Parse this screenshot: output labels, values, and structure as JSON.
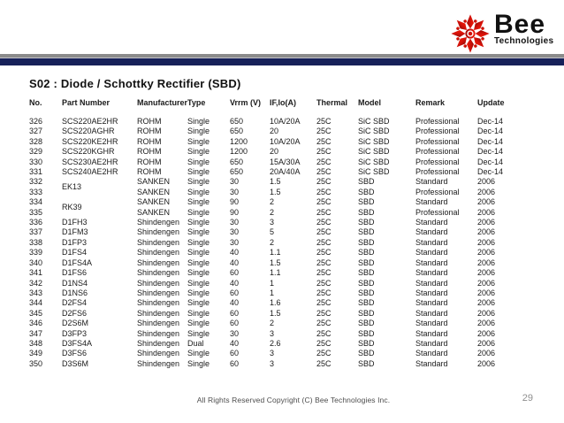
{
  "logo": {
    "brand": "Bee",
    "subtitle": "Technologies",
    "icon": "bee-starburst-icon",
    "brand_red": "#d21109"
  },
  "colors": {
    "bar_gray": "#8b8b8b",
    "bar_navy": "#172159",
    "text": "#1a1a1a"
  },
  "title": "S02 : Diode / Schottky Rectifier (SBD)",
  "table": {
    "headers": [
      "No.",
      "Part Number",
      "Manufacturer",
      "Type",
      "Vrrm (V)",
      "IF,Io(A)",
      "Thermal",
      "Model",
      "Remark",
      "Update"
    ],
    "column_keys": [
      "no",
      "part",
      "mfr",
      "type",
      "vrrm",
      "if_io",
      "thermal",
      "model",
      "remark",
      "update"
    ],
    "rows": [
      {
        "no": "326",
        "part": "SCS220AE2HR",
        "mfr": "ROHM",
        "type": "Single",
        "vrrm": "650",
        "if_io": "10A/20A",
        "thermal": "25C",
        "model": "SiC SBD",
        "remark": "Professional",
        "update": "Dec-14"
      },
      {
        "no": "327",
        "part": "SCS220AGHR",
        "mfr": "ROHM",
        "type": "Single",
        "vrrm": "650",
        "if_io": "20",
        "thermal": "25C",
        "model": "SiC SBD",
        "remark": "Professional",
        "update": "Dec-14"
      },
      {
        "no": "328",
        "part": "SCS220KE2HR",
        "mfr": "ROHM",
        "type": "Single",
        "vrrm": "1200",
        "if_io": "10A/20A",
        "thermal": "25C",
        "model": "SiC SBD",
        "remark": "Professional",
        "update": "Dec-14"
      },
      {
        "no": "329",
        "part": "SCS220KGHR",
        "mfr": "ROHM",
        "type": "Single",
        "vrrm": "1200",
        "if_io": "20",
        "thermal": "25C",
        "model": "SiC SBD",
        "remark": "Professional",
        "update": "Dec-14"
      },
      {
        "no": "330",
        "part": "SCS230AE2HR",
        "mfr": "ROHM",
        "type": "Single",
        "vrrm": "650",
        "if_io": "15A/30A",
        "thermal": "25C",
        "model": "SiC SBD",
        "remark": "Professional",
        "update": "Dec-14"
      },
      {
        "no": "331",
        "part": "SCS240AE2HR",
        "mfr": "ROHM",
        "type": "Single",
        "vrrm": "650",
        "if_io": "20A/40A",
        "thermal": "25C",
        "model": "SiC SBD",
        "remark": "Professional",
        "update": "Dec-14"
      },
      {
        "no": "332",
        "part": "EK13",
        "part_rowspan": 2,
        "mfr": "SANKEN",
        "type": "Single",
        "vrrm": "30",
        "if_io": "1.5",
        "thermal": "25C",
        "model": "SBD",
        "remark": "Standard",
        "update": "2006"
      },
      {
        "no": "333",
        "part": null,
        "mfr": "SANKEN",
        "type": "Single",
        "vrrm": "30",
        "if_io": "1.5",
        "thermal": "25C",
        "model": "SBD",
        "remark": "Professional",
        "update": "2006"
      },
      {
        "no": "334",
        "part": "RK39",
        "part_rowspan": 2,
        "mfr": "SANKEN",
        "type": "Single",
        "vrrm": "90",
        "if_io": "2",
        "thermal": "25C",
        "model": "SBD",
        "remark": "Standard",
        "update": "2006"
      },
      {
        "no": "335",
        "part": null,
        "mfr": "SANKEN",
        "type": "Single",
        "vrrm": "90",
        "if_io": "2",
        "thermal": "25C",
        "model": "SBD",
        "remark": "Professional",
        "update": "2006"
      },
      {
        "no": "336",
        "part": "D1FH3",
        "mfr": "Shindengen",
        "type": "Single",
        "vrrm": "30",
        "if_io": "3",
        "thermal": "25C",
        "model": "SBD",
        "remark": "Standard",
        "update": "2006"
      },
      {
        "no": "337",
        "part": "D1FM3",
        "mfr": "Shindengen",
        "type": "Single",
        "vrrm": "30",
        "if_io": "5",
        "thermal": "25C",
        "model": "SBD",
        "remark": "Standard",
        "update": "2006"
      },
      {
        "no": "338",
        "part": "D1FP3",
        "mfr": "Shindengen",
        "type": "Single",
        "vrrm": "30",
        "if_io": "2",
        "thermal": "25C",
        "model": "SBD",
        "remark": "Standard",
        "update": "2006"
      },
      {
        "no": "339",
        "part": "D1FS4",
        "mfr": "Shindengen",
        "type": "Single",
        "vrrm": "40",
        "if_io": "1.1",
        "thermal": "25C",
        "model": "SBD",
        "remark": "Standard",
        "update": "2006"
      },
      {
        "no": "340",
        "part": "D1FS4A",
        "mfr": "Shindengen",
        "type": "Single",
        "vrrm": "40",
        "if_io": "1.5",
        "thermal": "25C",
        "model": "SBD",
        "remark": "Standard",
        "update": "2006"
      },
      {
        "no": "341",
        "part": "D1FS6",
        "mfr": "Shindengen",
        "type": "Single",
        "vrrm": "60",
        "if_io": "1.1",
        "thermal": "25C",
        "model": "SBD",
        "remark": "Standard",
        "update": "2006"
      },
      {
        "no": "342",
        "part": "D1NS4",
        "mfr": "Shindengen",
        "type": "Single",
        "vrrm": "40",
        "if_io": "1",
        "thermal": "25C",
        "model": "SBD",
        "remark": "Standard",
        "update": "2006"
      },
      {
        "no": "343",
        "part": "D1NS6",
        "mfr": "Shindengen",
        "type": "Single",
        "vrrm": "60",
        "if_io": "1",
        "thermal": "25C",
        "model": "SBD",
        "remark": "Standard",
        "update": "2006"
      },
      {
        "no": "344",
        "part": "D2FS4",
        "mfr": "Shindengen",
        "type": "Single",
        "vrrm": "40",
        "if_io": "1.6",
        "thermal": "25C",
        "model": "SBD",
        "remark": "Standard",
        "update": "2006"
      },
      {
        "no": "345",
        "part": "D2FS6",
        "mfr": "Shindengen",
        "type": "Single",
        "vrrm": "60",
        "if_io": "1.5",
        "thermal": "25C",
        "model": "SBD",
        "remark": "Standard",
        "update": "2006"
      },
      {
        "no": "346",
        "part": "D2S6M",
        "mfr": "Shindengen",
        "type": "Single",
        "vrrm": "60",
        "if_io": "2",
        "thermal": "25C",
        "model": "SBD",
        "remark": "Standard",
        "update": "2006"
      },
      {
        "no": "347",
        "part": "D3FP3",
        "mfr": "Shindengen",
        "type": "Single",
        "vrrm": "30",
        "if_io": "3",
        "thermal": "25C",
        "model": "SBD",
        "remark": "Standard",
        "update": "2006"
      },
      {
        "no": "348",
        "part": "D3FS4A",
        "mfr": "Shindengen",
        "type": "Dual",
        "vrrm": "40",
        "if_io": "2.6",
        "thermal": "25C",
        "model": "SBD",
        "remark": "Standard",
        "update": "2006"
      },
      {
        "no": "349",
        "part": "D3FS6",
        "mfr": "Shindengen",
        "type": "Single",
        "vrrm": "60",
        "if_io": "3",
        "thermal": "25C",
        "model": "SBD",
        "remark": "Standard",
        "update": "2006"
      },
      {
        "no": "350",
        "part": "D3S6M",
        "mfr": "Shindengen",
        "type": "Single",
        "vrrm": "60",
        "if_io": "3",
        "thermal": "25C",
        "model": "SBD",
        "remark": "Standard",
        "update": "2006"
      }
    ]
  },
  "footer": {
    "copyright": "All Rights Reserved Copyright (C) Bee Technologies Inc.",
    "page_number": "29"
  }
}
